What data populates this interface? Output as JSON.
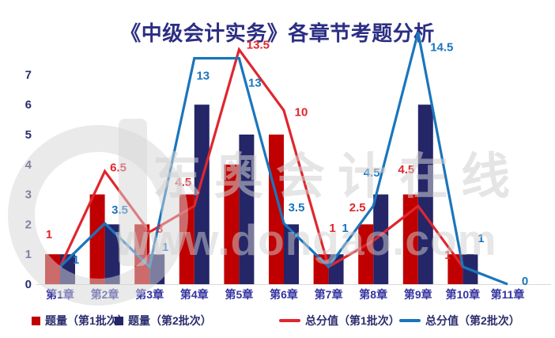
{
  "title": "《中级会计实务》各章节考题分析",
  "watermark": {
    "brand": "东奥会计在线",
    "url": "www.dongao.com"
  },
  "colors": {
    "title": "#2B2E83",
    "axis_tick_text": "#2B2D6E",
    "category_text": "#3333A0",
    "legend_text": "#2B2D6E",
    "baseline": "#D9D9D9",
    "bar_batch1": "#C00000",
    "bar_batch2": "#252668",
    "line_batch1": "#E0262D",
    "line_batch2": "#1B75BC"
  },
  "chart_data": {
    "type": "combo-bar-line",
    "title": "《中级会计实务》各章节考题分析",
    "categories": [
      "第1章",
      "第2章",
      "第3章",
      "第4章",
      "第5章",
      "第6章",
      "第7章",
      "第8章",
      "第9章",
      "第10章",
      "第11章"
    ],
    "bar_series": [
      {
        "name": "题量（第1批次）",
        "color": "#C00000",
        "values": [
          1,
          3,
          2,
          3,
          4,
          5,
          1,
          2,
          3,
          1,
          null
        ]
      },
      {
        "name": "题量（第2批次）",
        "color": "#252668",
        "values": [
          1,
          2,
          1,
          6,
          5,
          2,
          1,
          3,
          6,
          1,
          null
        ]
      }
    ],
    "line_series": [
      {
        "name": "总分值（第1批次）",
        "color": "#E0262D",
        "values": [
          1,
          6.5,
          3,
          4.5,
          13.5,
          10,
          1,
          2.5,
          4.5,
          1,
          null
        ]
      },
      {
        "name": "总分值（第2批次）",
        "color": "#1B75BC",
        "values": [
          1,
          3.5,
          1,
          13,
          13,
          3.5,
          1,
          4.5,
          14.5,
          1,
          0
        ]
      }
    ],
    "left_axis": {
      "min": 0,
      "max": 7,
      "ticks": [
        0,
        1,
        2,
        3,
        4,
        5,
        6,
        7
      ]
    },
    "grid": "off",
    "legend_position": "bottom",
    "label_offsets": {
      "line1": [
        [
          -14,
          -36
        ],
        [
          17,
          0
        ],
        [
          13,
          1
        ],
        [
          -14,
          -25
        ],
        [
          24,
          -1
        ],
        [
          22,
          7
        ],
        [
          5,
          -44
        ],
        [
          -20,
          -37
        ],
        [
          -15,
          -41
        ],
        [
          -19,
          -10
        ],
        null
      ],
      "line2": [
        [
          20,
          -4
        ],
        [
          19,
          -12
        ],
        [
          20,
          -20
        ],
        [
          11,
          27
        ],
        [
          20,
          36
        ],
        [
          16,
          -15
        ],
        [
          21,
          -44
        ],
        [
          -2,
          -37
        ],
        [
          30,
          24
        ],
        [
          23,
          -31
        ],
        [
          22,
          1
        ]
      ]
    }
  },
  "legend_items": [
    {
      "swatch": "square",
      "series": "bar_series.0"
    },
    {
      "swatch": "square",
      "series": "bar_series.1"
    },
    {
      "swatch": "line",
      "series": "line_series.0"
    },
    {
      "swatch": "line",
      "series": "line_series.1"
    }
  ]
}
